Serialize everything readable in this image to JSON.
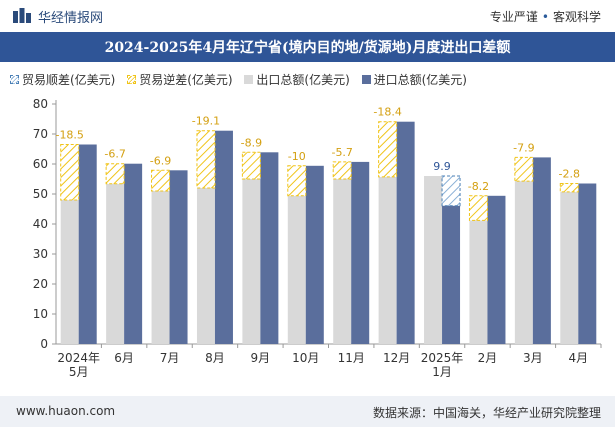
{
  "header": {
    "brand": "华经情报网",
    "tag1": "专业严谨",
    "tag2": "客观科学"
  },
  "footer": {
    "site": "www.huaon.com",
    "source": "数据来源：中国海关，华经产业研究院整理"
  },
  "colors": {
    "title_bg": "#2f5597",
    "import": "#5a6e9c",
    "export": "#d9d9d9",
    "deficit": "#f0c419",
    "surplus": "#4a7fb5"
  },
  "chart_data": {
    "type": "bar",
    "title": "2024-2025年4月年辽宁省(境内目的地/货源地)月度进出口差额",
    "categories": [
      [
        "2024年",
        "5月"
      ],
      [
        "6月"
      ],
      [
        "7月"
      ],
      [
        "8月"
      ],
      [
        "9月"
      ],
      [
        "10月"
      ],
      [
        "11月"
      ],
      [
        "12月"
      ],
      [
        "2025年",
        "1月"
      ],
      [
        "2月"
      ],
      [
        "3月"
      ],
      [
        "4月"
      ]
    ],
    "legend": [
      "贸易顺差(亿美元)",
      "贸易逆差(亿美元)",
      "出口总额(亿美元)",
      "进口总额(亿美元)"
    ],
    "series": [
      {
        "name": "出口总额(亿美元)",
        "values": [
          48,
          53.4,
          51,
          52,
          55,
          49.4,
          55,
          55.7,
          56,
          41.2,
          54.3,
          50.7
        ]
      },
      {
        "name": "进口总额(亿美元)",
        "values": [
          66.5,
          60.1,
          57.9,
          71.1,
          63.9,
          59.4,
          60.7,
          74.1,
          46.1,
          49.4,
          62.2,
          53.5
        ]
      }
    ],
    "balance": [
      -18.5,
      -6.7,
      -6.9,
      -19.1,
      -8.9,
      -10,
      -5.7,
      -18.4,
      9.9,
      -8.2,
      -7.9,
      -2.8
    ],
    "balance_labels": [
      "-18.5",
      "-6.7",
      "-6.9",
      "-19.1",
      "-8.9",
      "-10",
      "-5.7",
      "-18.4",
      "9.9",
      "-8.2",
      "-7.9",
      "-2.8"
    ],
    "ylim": [
      0,
      80
    ],
    "yticks": [
      "0",
      "10",
      "20",
      "30",
      "40",
      "50",
      "60",
      "70",
      "80"
    ],
    "grid": false,
    "legend_position": "top-left"
  }
}
